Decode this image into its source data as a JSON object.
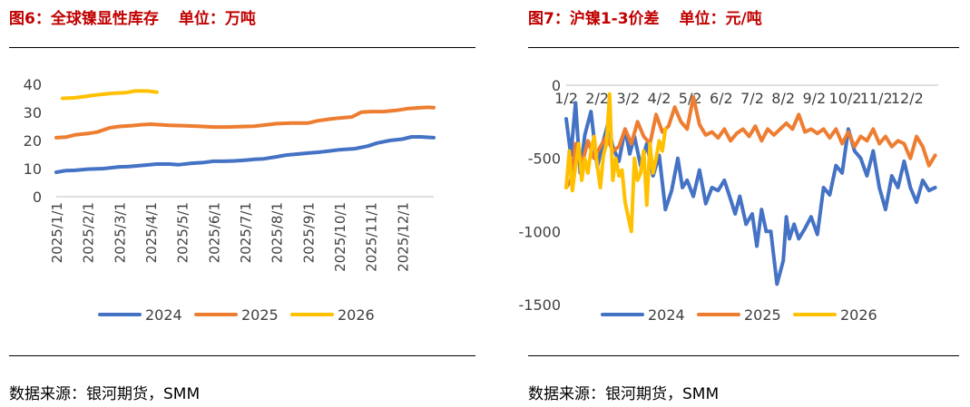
{
  "left_panel": {
    "figure_label": "图6：全球镍显性库存",
    "unit_label": "单位：万吨",
    "source": "数据来源：银河期货，SMM"
  },
  "right_panel": {
    "figure_label": "图7：沪镍1-3价差",
    "unit_label": "单位：元/吨",
    "source": "数据来源：银河期货，SMM"
  },
  "colors": {
    "title": "#c00000",
    "axis": "#bfbfbf",
    "s2024": "#4472c4",
    "s2025": "#ed7d31",
    "s2026": "#ffc000"
  },
  "chart_data": [
    {
      "type": "line",
      "title": "全球镍显性库存",
      "ylabel": "万吨",
      "ylim": [
        0,
        40
      ],
      "yticks": [
        0,
        10,
        20,
        30,
        40
      ],
      "xlim": [
        0,
        12
      ],
      "x_ticks": [
        "2025/1/1",
        "2025/2/1",
        "2025/3/1",
        "2025/4/1",
        "2025/5/1",
        "2025/6/1",
        "2025/7/1",
        "2025/8/1",
        "2025/9/1",
        "2025/10/1",
        "2025/11/1",
        "2025/12/1"
      ],
      "legend_position": "bottom",
      "series": [
        {
          "name": "2024",
          "color_key": "s2024",
          "x": [
            0.0,
            0.3,
            0.6,
            1.0,
            1.5,
            2.0,
            2.3,
            2.8,
            3.2,
            3.6,
            3.9,
            4.3,
            4.7,
            5.0,
            5.3,
            5.6,
            6.0,
            6.3,
            6.6,
            7.0,
            7.3,
            7.7,
            8.0,
            8.4,
            8.7,
            9.0,
            9.5,
            9.9,
            10.2,
            10.6,
            11.0,
            11.3,
            11.6,
            12.0
          ],
          "values": [
            8.7,
            9.3,
            9.4,
            9.8,
            10.0,
            10.6,
            10.7,
            11.2,
            11.6,
            11.6,
            11.4,
            11.9,
            12.2,
            12.6,
            12.6,
            12.7,
            13.0,
            13.3,
            13.5,
            14.2,
            14.8,
            15.2,
            15.5,
            15.9,
            16.3,
            16.7,
            17.1,
            18.0,
            19.1,
            20.0,
            20.5,
            21.3,
            21.3,
            21.0
          ]
        },
        {
          "name": "2025",
          "color_key": "s2025",
          "x": [
            0.0,
            0.3,
            0.6,
            1.0,
            1.3,
            1.7,
            2.0,
            2.4,
            2.7,
            3.0,
            3.3,
            3.6,
            4.0,
            4.5,
            5.0,
            5.5,
            6.0,
            6.3,
            6.7,
            7.0,
            7.5,
            8.0,
            8.3,
            8.7,
            9.0,
            9.4,
            9.7,
            10.0,
            10.4,
            10.8,
            11.2,
            11.5,
            11.8,
            12.0
          ],
          "values": [
            21.0,
            21.2,
            22.0,
            22.5,
            23.0,
            24.5,
            25.0,
            25.3,
            25.6,
            25.8,
            25.6,
            25.4,
            25.3,
            25.1,
            24.8,
            24.8,
            25.0,
            25.1,
            25.6,
            26.0,
            26.2,
            26.2,
            27.0,
            27.6,
            28.0,
            28.4,
            30.1,
            30.3,
            30.3,
            30.7,
            31.4,
            31.6,
            31.8,
            31.7
          ]
        },
        {
          "name": "2026",
          "color_key": "s2026",
          "x": [
            0.2,
            0.6,
            1.0,
            1.4,
            1.8,
            2.2,
            2.5,
            2.9,
            3.2
          ],
          "values": [
            35.0,
            35.2,
            35.8,
            36.4,
            36.8,
            37.0,
            37.6,
            37.6,
            37.2
          ]
        }
      ]
    },
    {
      "type": "line",
      "title": "沪镍1-3价差",
      "ylabel": "元/吨",
      "ylim": [
        -1500,
        0
      ],
      "yticks": [
        0,
        -500,
        -1000,
        -1500
      ],
      "xlim": [
        0,
        12
      ],
      "x_ticks": [
        "1/2",
        "2/2",
        "3/2",
        "4/2",
        "5/2",
        "6/2",
        "7/2",
        "8/2",
        "9/2",
        "10/2",
        "11/2",
        "12/2"
      ],
      "legend_position": "bottom",
      "series": [
        {
          "name": "2024",
          "color_key": "s2024",
          "x": [
            0.0,
            0.15,
            0.3,
            0.45,
            0.6,
            0.8,
            1.0,
            1.2,
            1.35,
            1.5,
            1.7,
            1.9,
            2.05,
            2.2,
            2.4,
            2.6,
            2.8,
            3.0,
            3.2,
            3.4,
            3.6,
            3.75,
            3.9,
            4.1,
            4.3,
            4.5,
            4.7,
            4.9,
            5.1,
            5.3,
            5.45,
            5.6,
            5.8,
            6.0,
            6.15,
            6.3,
            6.45,
            6.6,
            6.8,
            7.0,
            7.1,
            7.2,
            7.35,
            7.5,
            7.7,
            7.9,
            8.1,
            8.3,
            8.5,
            8.7,
            8.9,
            9.1,
            9.3,
            9.5,
            9.7,
            9.9,
            10.1,
            10.3,
            10.5,
            10.7,
            10.9,
            11.1,
            11.3,
            11.5,
            11.7,
            11.9
          ],
          "values": [
            -230,
            -480,
            -120,
            -600,
            -340,
            -180,
            -560,
            -380,
            -260,
            -420,
            -520,
            -300,
            -470,
            -350,
            -550,
            -400,
            -620,
            -480,
            -850,
            -720,
            -500,
            -700,
            -650,
            -760,
            -580,
            -810,
            -700,
            -720,
            -650,
            -780,
            -880,
            -760,
            -950,
            -880,
            -1100,
            -850,
            -1000,
            -1000,
            -1360,
            -1200,
            -900,
            -1050,
            -950,
            -1050,
            -980,
            -900,
            -1020,
            -700,
            -750,
            -550,
            -600,
            -300,
            -450,
            -500,
            -620,
            -450,
            -700,
            -850,
            -620,
            -700,
            -520,
            -700,
            -800,
            -650,
            -720,
            -700
          ]
        },
        {
          "name": "2025",
          "color_key": "s2025",
          "x": [
            0.0,
            0.15,
            0.3,
            0.5,
            0.7,
            0.9,
            1.1,
            1.3,
            1.5,
            1.7,
            1.9,
            2.1,
            2.3,
            2.5,
            2.7,
            2.9,
            3.1,
            3.3,
            3.5,
            3.7,
            3.9,
            4.1,
            4.3,
            4.5,
            4.7,
            4.9,
            5.1,
            5.3,
            5.5,
            5.7,
            5.9,
            6.1,
            6.3,
            6.5,
            6.7,
            6.9,
            7.1,
            7.3,
            7.5,
            7.7,
            7.9,
            8.1,
            8.3,
            8.5,
            8.7,
            8.9,
            9.1,
            9.3,
            9.5,
            9.7,
            9.9,
            10.1,
            10.3,
            10.5,
            10.7,
            10.9,
            11.1,
            11.3,
            11.5,
            11.7,
            11.9
          ],
          "values": [
            -700,
            -650,
            -400,
            -550,
            -380,
            -500,
            -420,
            -350,
            -450,
            -420,
            -300,
            -400,
            -250,
            -350,
            -400,
            -200,
            -320,
            -280,
            -150,
            -250,
            -300,
            -80,
            -270,
            -340,
            -320,
            -360,
            -300,
            -380,
            -330,
            -300,
            -350,
            -280,
            -380,
            -300,
            -340,
            -300,
            -260,
            -300,
            -200,
            -320,
            -300,
            -330,
            -300,
            -360,
            -300,
            -400,
            -320,
            -420,
            -350,
            -380,
            -300,
            -400,
            -350,
            -420,
            -380,
            -400,
            -500,
            -350,
            -420,
            -550,
            -480
          ]
        },
        {
          "name": "2026",
          "color_key": "s2026",
          "x": [
            0.0,
            0.1,
            0.2,
            0.3,
            0.4,
            0.5,
            0.6,
            0.7,
            0.8,
            0.9,
            1.0,
            1.1,
            1.2,
            1.3,
            1.4,
            1.5,
            1.6,
            1.7,
            1.8,
            1.9,
            2.0,
            2.1,
            2.2,
            2.3,
            2.4,
            2.5,
            2.6,
            2.7,
            2.8,
            2.9,
            3.0,
            3.1,
            3.2
          ],
          "values": [
            -700,
            -450,
            -720,
            -550,
            -400,
            -650,
            -500,
            -600,
            -450,
            -350,
            -550,
            -700,
            -480,
            -400,
            -60,
            -650,
            -500,
            -620,
            -580,
            -800,
            -900,
            -1000,
            -500,
            -650,
            -600,
            -450,
            -820,
            -400,
            -600,
            -500,
            -380,
            -450,
            -300
          ]
        }
      ]
    }
  ]
}
